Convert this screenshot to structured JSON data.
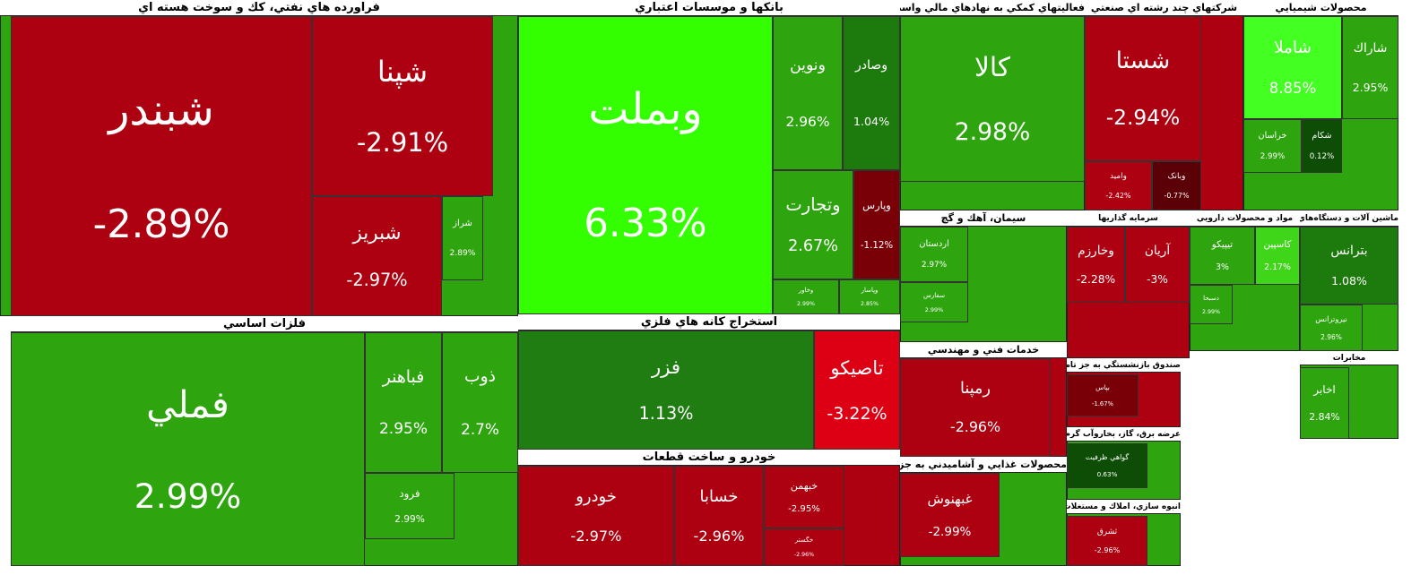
{
  "chart_data": {
    "type": "treemap",
    "groups": [
      {
        "name": "فراورده هاي نفتي، كك و سوخت هسته اي",
        "labels": [
          "شبندر",
          "شپنا",
          "شبريز",
          "شراز"
        ],
        "values": [
          -2.89,
          -2.91,
          -2.97,
          2.89
        ],
        "value_labels": [
          "-2.89%",
          "-2.91%",
          "-2.97%",
          "2.89%"
        ],
        "colors": [
          "#ad0010",
          "#ad0010",
          "#ad0010",
          "#2ea50f"
        ]
      },
      {
        "name": "فلزات اساسي",
        "labels": [
          "فملي",
          "فباهنر",
          "ذوب",
          "فرود"
        ],
        "values": [
          2.99,
          2.95,
          2.7,
          2.99
        ],
        "value_labels": [
          "2.99%",
          "2.95%",
          "2.7%",
          "2.99%"
        ],
        "colors": [
          "#2ea50f",
          "#2ea50f",
          "#2ea50f",
          "#2ea50f"
        ]
      },
      {
        "name": "بانكها و موسسات اعتباري",
        "labels": [
          "وبملت",
          "ونوين",
          "وصادر",
          "وتجارت",
          "وپارس",
          "وخاور",
          "وپاسار"
        ],
        "values": [
          6.33,
          2.96,
          1.04,
          2.67,
          -1.12,
          2.99,
          2.85
        ],
        "value_labels": [
          "6.33%",
          "2.96%",
          "1.04%",
          "2.67%",
          "-1.12%",
          "2.99%",
          "2.85%"
        ],
        "colors": [
          "#33ff00",
          "#2ea50f",
          "#1d7a0c",
          "#2ea50f",
          "#7a0008",
          "#2ea50f",
          "#2ea50f"
        ]
      },
      {
        "name": "استخراج كانه هاي فلزي",
        "labels": [
          "فزر",
          "تاصيكو"
        ],
        "values": [
          1.13,
          -3.22
        ],
        "value_labels": [
          "1.13%",
          "-3.22%"
        ],
        "colors": [
          "#1f7d12",
          "#dd0014"
        ]
      },
      {
        "name": "خودرو و ساخت قطعات",
        "labels": [
          "خودرو",
          "خسابا",
          "خبهمن",
          "خگستر"
        ],
        "values": [
          -2.97,
          -2.96,
          -2.95,
          -2.96
        ],
        "value_labels": [
          "-2.97%",
          "-2.96%",
          "-2.95%",
          "-2.96%"
        ],
        "colors": [
          "#ad0010",
          "#ad0010",
          "#ad0010",
          "#ad0010"
        ]
      },
      {
        "name": "فعاليتهاي كمكي به نهادهاي مالي واسط",
        "labels": [
          "كالا"
        ],
        "values": [
          2.98
        ],
        "value_labels": [
          "2.98%"
        ],
        "colors": [
          "#2ea50f"
        ]
      },
      {
        "name": "شركتهاي چند رشته اي صنعتي",
        "labels": [
          "شستا",
          "وامید",
          "وبانک"
        ],
        "values": [
          -2.94,
          -2.42,
          -0.77
        ],
        "value_labels": [
          "-2.94%",
          "-2.42%",
          "-0.77%"
        ],
        "colors": [
          "#ad0010",
          "#ad0010",
          "#5a0006"
        ]
      },
      {
        "name": "محصولات شيميايي",
        "labels": [
          "شاملا",
          "شاراك",
          "خراسان",
          "شكام"
        ],
        "values": [
          8.85,
          2.95,
          2.99,
          0.12
        ],
        "value_labels": [
          "8.85%",
          "2.95%",
          "2.99%",
          "0.12%"
        ],
        "colors": [
          "#44ff22",
          "#2ea50f",
          "#2ea50f",
          "#0e4d05"
        ]
      },
      {
        "name": "سيمان، آهك و گچ",
        "labels": [
          "اردستان",
          "سفارس"
        ],
        "values": [
          2.97,
          2.99
        ],
        "value_labels": [
          "2.97%",
          "2.99%"
        ],
        "colors": [
          "#2ea50f",
          "#2ea50f"
        ]
      },
      {
        "name": "سرمايه گذاريها",
        "labels": [
          "وخارزم",
          "آريان"
        ],
        "values": [
          -2.28,
          -3
        ],
        "value_labels": [
          "-2.28%",
          "-3%"
        ],
        "colors": [
          "#ad0010",
          "#ad0010"
        ]
      },
      {
        "name": "مواد و محصولات دارويي",
        "labels": [
          "تيپيكو",
          "كاسپين",
          "دسبحا"
        ],
        "values": [
          3,
          2.17,
          2.99
        ],
        "value_labels": [
          "3%",
          "2.17%",
          "2.99%"
        ],
        "colors": [
          "#2ea50f",
          "#3fd61a",
          "#2ea50f"
        ]
      },
      {
        "name": "ماشين آلات و دستگاه‌هاي برقي",
        "labels": [
          "بترانس",
          "نيروترانس"
        ],
        "values": [
          1.08,
          2.96
        ],
        "value_labels": [
          "1.08%",
          "2.96%"
        ],
        "colors": [
          "#1d7a0c",
          "#2ea50f"
        ]
      },
      {
        "name": "خدمات فني و مهندسي",
        "labels": [
          "رمپنا"
        ],
        "values": [
          -2.96
        ],
        "value_labels": [
          "-2.96%"
        ],
        "colors": [
          "#ad0010"
        ]
      },
      {
        "name": "محصولات غذايي و آشاميدني به جز قند و شكر",
        "labels": [
          "غبهنوش"
        ],
        "values": [
          -2.99
        ],
        "value_labels": [
          "-2.99%"
        ],
        "colors": [
          "#ad0010"
        ]
      },
      {
        "name": "صندوق بازنشستگي به جز تامين اجتماعي",
        "labels": [
          "بپاس"
        ],
        "values": [
          -1.67
        ],
        "value_labels": [
          "-1.67%"
        ],
        "colors": [
          "#7a0008"
        ]
      },
      {
        "name": "عرضه برق، گاز، بخاروآب گرم",
        "labels": [
          "گواهي ظرفيت"
        ],
        "values": [
          0.63
        ],
        "value_labels": [
          "0.63%"
        ],
        "colors": [
          "#0e4d05"
        ]
      },
      {
        "name": "انبوه سازي، املاك و مستغلات",
        "labels": [
          "ثشرق"
        ],
        "values": [
          -2.96
        ],
        "value_labels": [
          "-2.96%"
        ],
        "colors": [
          "#ad0010"
        ]
      },
      {
        "name": "مخابرات",
        "labels": [
          "اخابر"
        ],
        "values": [
          2.84
        ],
        "value_labels": [
          "2.84%"
        ],
        "colors": [
          "#2ea50f"
        ]
      }
    ]
  }
}
